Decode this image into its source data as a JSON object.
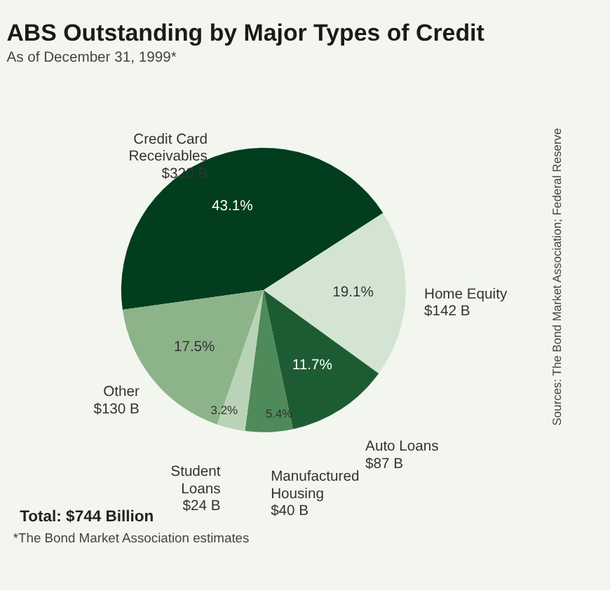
{
  "chart_data": {
    "type": "pie",
    "title": "ABS Outstanding by Major Types of Credit",
    "subtitle": "As of December 31, 1999*",
    "categories": [
      "Credit Card Receivables",
      "Home Equity",
      "Auto Loans",
      "Manufactured Housing",
      "Student Loans",
      "Other"
    ],
    "values": [
      43.1,
      19.1,
      11.7,
      5.4,
      3.2,
      17.5
    ],
    "colors": [
      "#023d1e",
      "#d4e4d2",
      "#1d5c32",
      "#4f8a5a",
      "#b9d3b6",
      "#8db38a"
    ],
    "value_labels": [
      "43.1%",
      "19.1%",
      "11.7%",
      "5.4%",
      "3.2%",
      "17.5%"
    ],
    "annotations": [
      "$320 B",
      "$142 B",
      "$87 B",
      "$40 B",
      "$24 B",
      "$130 B",
      "Total: $744 Billion",
      "*The Bond Market Association estimates",
      "Sources: The Bond Market Association; Federal Reserve"
    ],
    "legend": false
  }
}
